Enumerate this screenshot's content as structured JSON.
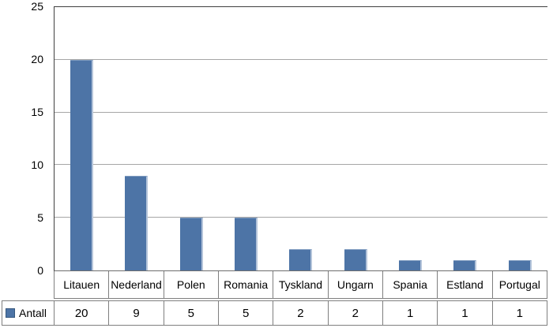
{
  "chart_data": {
    "type": "bar",
    "title": "",
    "xlabel": "",
    "ylabel": "",
    "categories": [
      "Litauen",
      "Nederland",
      "Polen",
      "Romania",
      "Tyskland",
      "Ungarn",
      "Spania",
      "Estland",
      "Portugal"
    ],
    "series": [
      {
        "name": "Antall",
        "values": [
          20,
          9,
          5,
          5,
          2,
          2,
          1,
          1,
          1
        ]
      }
    ],
    "ylim": [
      0,
      25
    ],
    "yticks": [
      0,
      5,
      10,
      15,
      20,
      25
    ],
    "grid": true,
    "legend_position": "bottom-table-row",
    "colors": {
      "bar": "#4d74a6",
      "bar_highlight": "#b4c4da",
      "gridline": "#a6a6a6",
      "axis": "#3f3f3f",
      "table_border": "#7f7f7f"
    }
  }
}
